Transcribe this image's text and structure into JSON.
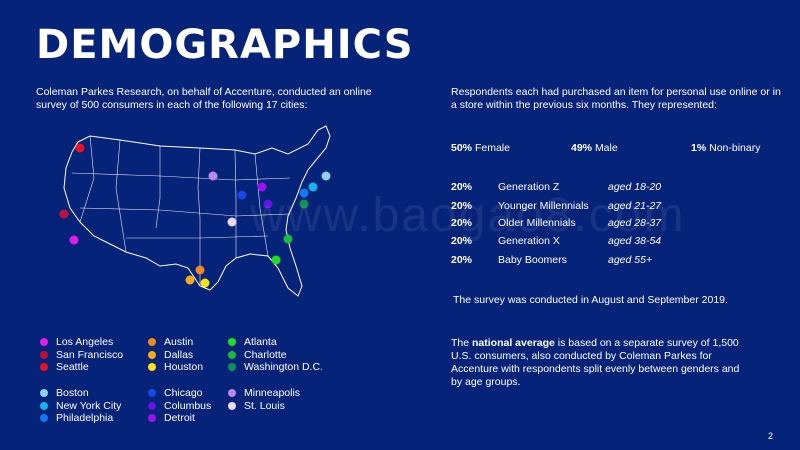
{
  "title": "DEMOGRAPHICS",
  "intro_left": "Coleman Parkes Research, on behalf of Accenture, conducted an online survey of 500 consumers in each of the following 17 cities:",
  "intro_right": "Respondents each had purchased an item for personal use online or in a store within the previous six months. They represented:",
  "gender": [
    {
      "pct": "50%",
      "label": "Female"
    },
    {
      "pct": "49%",
      "label": "Male"
    },
    {
      "pct": "1%",
      "label": "Non-binary"
    }
  ],
  "ages": [
    {
      "pct": "20%",
      "name": "Generation Z",
      "range": "aged 18-20"
    },
    {
      "pct": "20%",
      "name": "Younger Millennials",
      "range": "aged 21-27"
    },
    {
      "pct": "20%",
      "name": "Older Millennials",
      "range": "aged 28-37"
    },
    {
      "pct": "20%",
      "name": "Generation X",
      "range": "aged 38-54"
    },
    {
      "pct": "20%",
      "name": "Baby Boomers",
      "range": "aged 55+"
    }
  ],
  "survey_date": "The survey was conducted in August and September 2019.",
  "national": {
    "pre": "The ",
    "bold": "national average",
    "post": " is based on a separate survey of 1,500 U.S. consumers, also conducted by Coleman Parkes for Accenture with respondents split evenly between genders and by age groups."
  },
  "cities": [
    {
      "name": "Los Angeles",
      "color": "#e21be6"
    },
    {
      "name": "San Francisco",
      "color": "#c0103a"
    },
    {
      "name": "Seattle",
      "color": "#ee1022"
    },
    {
      "name": "Austin",
      "color": "#f08a1e"
    },
    {
      "name": "Dallas",
      "color": "#f6ad12"
    },
    {
      "name": "Houston",
      "color": "#fde20f"
    },
    {
      "name": "Atlanta",
      "color": "#22e020"
    },
    {
      "name": "Charlotte",
      "color": "#18bb3a"
    },
    {
      "name": "Washington D.C.",
      "color": "#0f9450"
    },
    {
      "name": "Boston",
      "color": "#8fd2f0"
    },
    {
      "name": "New York City",
      "color": "#16b2f2"
    },
    {
      "name": "Philadelphia",
      "color": "#1478f2"
    },
    {
      "name": "Chicago",
      "color": "#1846e8"
    },
    {
      "name": "Columbus",
      "color": "#6215e2"
    },
    {
      "name": "Detroit",
      "color": "#9a12f0"
    },
    {
      "name": "Minneapolis",
      "color": "#bb86f0"
    },
    {
      "name": "St. Louis",
      "color": "#ebd9f4"
    }
  ],
  "watermark": "www.baogao8.com",
  "page_number": "2"
}
